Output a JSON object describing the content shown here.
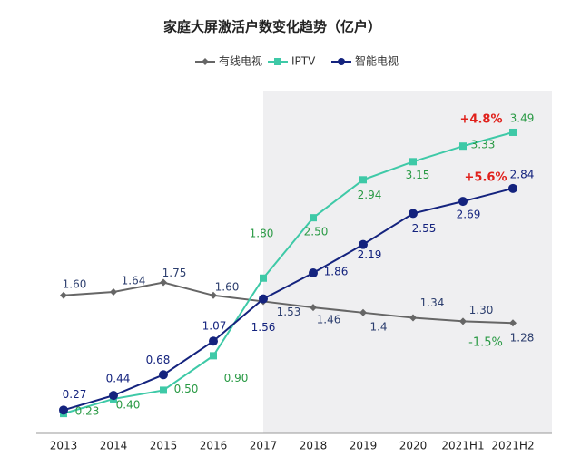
{
  "chart_data": {
    "type": "line",
    "title": "家庭大屏激活户数变化趋势（亿户）",
    "categories": [
      "2013",
      "2014",
      "2015",
      "2016",
      "2017",
      "2018",
      "2019",
      "2020",
      "2021H1",
      "2021H2"
    ],
    "series": [
      {
        "name": "有线电视",
        "color": "#666666",
        "marker": "diamond",
        "label_color": "#2c3e6e",
        "values": [
          1.6,
          1.64,
          1.75,
          1.6,
          1.53,
          1.46,
          1.4,
          1.34,
          1.3,
          1.28
        ],
        "value_labels": [
          "1.60",
          "1.64",
          "1.75",
          "1.60",
          "1.53",
          "1.46",
          "1.4",
          "1.34",
          "1.30",
          "1.28"
        ]
      },
      {
        "name": "IPTV",
        "color": "#3ec9a7",
        "marker": "square",
        "label_color": "#2a9a45",
        "values": [
          0.23,
          0.4,
          0.5,
          0.9,
          1.8,
          2.5,
          2.94,
          3.15,
          3.33,
          3.49
        ],
        "value_labels": [
          "0.23",
          "0.40",
          "0.50",
          "0.90",
          "1.80",
          "2.50",
          "2.94",
          "3.15",
          "3.33",
          "3.49"
        ]
      },
      {
        "name": "智能电视",
        "color": "#14237e",
        "marker": "circle",
        "label_color": "#14237e",
        "values": [
          0.27,
          0.44,
          0.68,
          1.07,
          1.56,
          1.86,
          2.19,
          2.55,
          2.69,
          2.84
        ],
        "value_labels": [
          "0.27",
          "0.44",
          "0.68",
          "1.07",
          "1.56",
          "1.86",
          "2.19",
          "2.55",
          "2.69",
          "2.84"
        ]
      }
    ],
    "annotations": [
      {
        "text": "+4.8%",
        "color": "#e0201b"
      },
      {
        "text": "+5.6%",
        "color": "#e0201b"
      },
      {
        "text": "-1.5%",
        "color": "#2a9a45"
      }
    ],
    "ylim": [
      0,
      3.7
    ],
    "legend": "top"
  }
}
